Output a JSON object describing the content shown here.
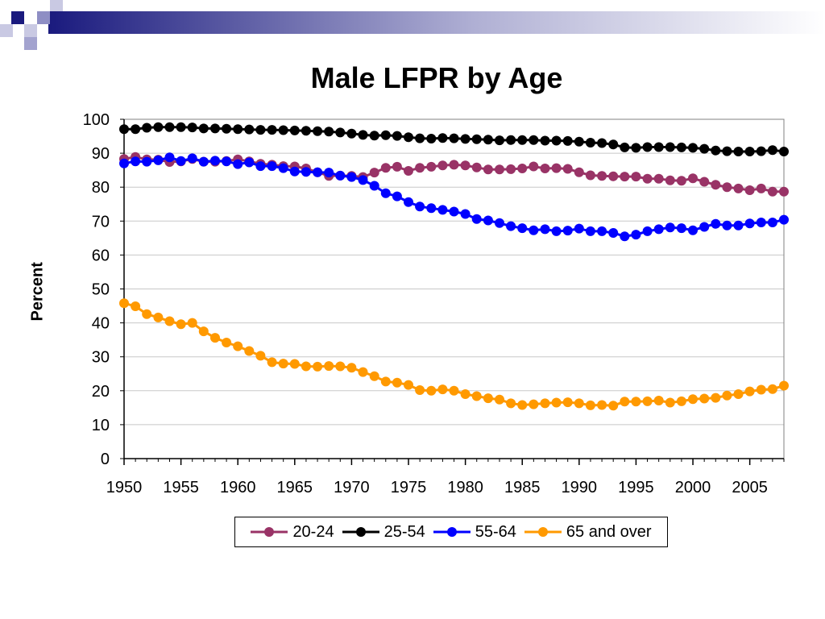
{
  "chart_data": {
    "type": "line",
    "title": "Male LFPR by Age",
    "ylabel": "Percent",
    "xlabel": "",
    "xlim": [
      1950,
      2008
    ],
    "ylim": [
      0,
      100
    ],
    "x_ticks": [
      "1950",
      "1955",
      "1960",
      "1965",
      "1970",
      "1975",
      "1980",
      "1985",
      "1990",
      "1995",
      "2000",
      "2005"
    ],
    "y_ticks": [
      "0",
      "10",
      "20",
      "30",
      "40",
      "50",
      "60",
      "70",
      "80",
      "90",
      "100"
    ],
    "grid": "horizontal",
    "legend_position": "bottom",
    "x": [
      1950,
      1951,
      1952,
      1953,
      1954,
      1955,
      1956,
      1957,
      1958,
      1959,
      1960,
      1961,
      1962,
      1963,
      1964,
      1965,
      1966,
      1967,
      1968,
      1969,
      1970,
      1971,
      1972,
      1973,
      1974,
      1975,
      1976,
      1977,
      1978,
      1979,
      1980,
      1981,
      1982,
      1983,
      1984,
      1985,
      1986,
      1987,
      1988,
      1989,
      1990,
      1991,
      1992,
      1993,
      1994,
      1995,
      1996,
      1997,
      1998,
      1999,
      2000,
      2001,
      2002,
      2003,
      2004,
      2005,
      2006,
      2007,
      2008
    ],
    "series": [
      {
        "name": "20-24",
        "color": "#993366",
        "values": [
          88.3,
          88.9,
          88.2,
          88.1,
          87.4,
          87.6,
          88.3,
          87.5,
          87.5,
          87.7,
          88.2,
          87.6,
          86.9,
          86.6,
          86.2,
          86.1,
          85.5,
          84.4,
          83.3,
          83.4,
          83.3,
          83.0,
          84.3,
          85.7,
          86.0,
          84.8,
          85.7,
          86.0,
          86.4,
          86.6,
          86.4,
          85.8,
          85.2,
          85.2,
          85.3,
          85.5,
          86.1,
          85.5,
          85.6,
          85.4,
          84.4,
          83.5,
          83.3,
          83.2,
          83.1,
          83.1,
          82.5,
          82.5,
          82.0,
          81.9,
          82.6,
          81.6,
          80.7,
          80.0,
          79.6,
          79.1,
          79.6,
          78.7,
          78.7
        ]
      },
      {
        "name": "25-54",
        "color": "#000000",
        "values": [
          97.1,
          97.1,
          97.5,
          97.7,
          97.7,
          97.7,
          97.6,
          97.3,
          97.3,
          97.2,
          97.1,
          97.0,
          96.9,
          96.9,
          96.8,
          96.7,
          96.6,
          96.5,
          96.4,
          96.1,
          95.8,
          95.4,
          95.2,
          95.3,
          95.1,
          94.7,
          94.4,
          94.3,
          94.5,
          94.4,
          94.2,
          94.1,
          94.0,
          93.8,
          93.9,
          93.9,
          93.9,
          93.7,
          93.7,
          93.6,
          93.4,
          93.1,
          93.0,
          92.6,
          91.7,
          91.6,
          91.8,
          91.8,
          91.8,
          91.7,
          91.6,
          91.3,
          90.8,
          90.6,
          90.5,
          90.5,
          90.6,
          90.9,
          90.5
        ]
      },
      {
        "name": "55-64",
        "color": "#0000ff",
        "values": [
          87.0,
          87.6,
          87.5,
          87.9,
          88.8,
          87.7,
          88.5,
          87.5,
          87.8,
          87.6,
          86.8,
          87.3,
          86.2,
          86.2,
          85.6,
          84.6,
          84.5,
          84.4,
          84.3,
          83.4,
          83.0,
          82.1,
          80.4,
          78.2,
          77.3,
          75.6,
          74.3,
          73.8,
          73.3,
          72.8,
          72.1,
          70.6,
          70.2,
          69.4,
          68.5,
          67.9,
          67.3,
          67.6,
          67.0,
          67.2,
          67.8,
          67.0,
          67.0,
          66.5,
          65.5,
          66.0,
          67.0,
          67.6,
          68.1,
          67.9,
          67.3,
          68.3,
          69.2,
          68.7,
          68.7,
          69.3,
          69.6,
          69.6,
          70.4
        ]
      },
      {
        "name": "65 and over",
        "color": "#ff9900",
        "values": [
          45.8,
          44.9,
          42.6,
          41.6,
          40.5,
          39.6,
          40.0,
          37.5,
          35.6,
          34.2,
          33.1,
          31.7,
          30.3,
          28.4,
          28.0,
          27.9,
          27.2,
          27.1,
          27.3,
          27.2,
          26.8,
          25.5,
          24.3,
          22.7,
          22.4,
          21.7,
          20.2,
          20.0,
          20.4,
          20.0,
          19.0,
          18.4,
          17.8,
          17.4,
          16.3,
          15.8,
          16.0,
          16.3,
          16.5,
          16.6,
          16.3,
          15.7,
          15.8,
          15.6,
          16.8,
          16.8,
          16.9,
          17.1,
          16.5,
          16.9,
          17.5,
          17.7,
          17.9,
          18.6,
          19.0,
          19.8,
          20.3,
          20.5,
          21.5
        ]
      }
    ]
  }
}
